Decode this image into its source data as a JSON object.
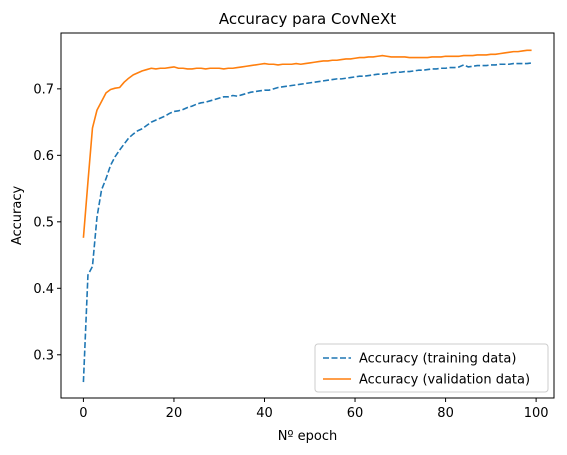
{
  "chart_data": {
    "type": "line",
    "title": "Accuracy para CovNeXt",
    "xlabel": "Nº epoch",
    "ylabel": "Accuracy",
    "xlim": [
      -4.95,
      103.95
    ],
    "ylim": [
      0.235,
      0.784
    ],
    "xticks": [
      0,
      20,
      40,
      60,
      80,
      100
    ],
    "yticks": [
      0.3,
      0.4,
      0.5,
      0.6,
      0.7
    ],
    "grid": false,
    "legend_position": "lower-right",
    "series": [
      {
        "name": "Accuracy (training data)",
        "color": "#1f77b4",
        "style": "dashed",
        "x": [
          0,
          1,
          2,
          3,
          4,
          5,
          6,
          7,
          8,
          9,
          10,
          11,
          12,
          13,
          14,
          15,
          16,
          17,
          18,
          19,
          20,
          21,
          22,
          23,
          24,
          25,
          26,
          27,
          28,
          29,
          30,
          31,
          32,
          33,
          34,
          35,
          36,
          37,
          38,
          39,
          40,
          41,
          42,
          43,
          44,
          45,
          46,
          47,
          48,
          49,
          50,
          51,
          52,
          53,
          54,
          55,
          56,
          57,
          58,
          59,
          60,
          61,
          62,
          63,
          64,
          65,
          66,
          67,
          68,
          69,
          70,
          71,
          72,
          73,
          74,
          75,
          76,
          77,
          78,
          79,
          80,
          81,
          82,
          83,
          84,
          85,
          86,
          87,
          88,
          89,
          90,
          91,
          92,
          93,
          94,
          95,
          96,
          97,
          98,
          99
        ],
        "values": [
          0.259,
          0.42,
          0.433,
          0.507,
          0.548,
          0.565,
          0.585,
          0.598,
          0.608,
          0.617,
          0.626,
          0.632,
          0.637,
          0.64,
          0.645,
          0.65,
          0.653,
          0.656,
          0.659,
          0.663,
          0.666,
          0.667,
          0.669,
          0.672,
          0.674,
          0.677,
          0.679,
          0.68,
          0.682,
          0.684,
          0.686,
          0.688,
          0.688,
          0.69,
          0.689,
          0.691,
          0.693,
          0.695,
          0.696,
          0.697,
          0.698,
          0.698,
          0.7,
          0.702,
          0.703,
          0.704,
          0.705,
          0.706,
          0.707,
          0.708,
          0.709,
          0.71,
          0.711,
          0.712,
          0.713,
          0.714,
          0.715,
          0.715,
          0.716,
          0.717,
          0.718,
          0.719,
          0.719,
          0.72,
          0.721,
          0.722,
          0.722,
          0.723,
          0.724,
          0.725,
          0.725,
          0.726,
          0.726,
          0.727,
          0.728,
          0.728,
          0.729,
          0.73,
          0.73,
          0.731,
          0.731,
          0.732,
          0.732,
          0.733,
          0.736,
          0.733,
          0.734,
          0.735,
          0.735,
          0.735,
          0.736,
          0.736,
          0.737,
          0.737,
          0.737,
          0.738,
          0.738,
          0.738,
          0.738,
          0.739
        ]
      },
      {
        "name": "Accuracy (validation data)",
        "color": "#ff7f0e",
        "style": "solid",
        "x": [
          0,
          1,
          2,
          3,
          4,
          5,
          6,
          7,
          8,
          9,
          10,
          11,
          12,
          13,
          14,
          15,
          16,
          17,
          18,
          19,
          20,
          21,
          22,
          23,
          24,
          25,
          26,
          27,
          28,
          29,
          30,
          31,
          32,
          33,
          34,
          35,
          36,
          37,
          38,
          39,
          40,
          41,
          42,
          43,
          44,
          45,
          46,
          47,
          48,
          49,
          50,
          51,
          52,
          53,
          54,
          55,
          56,
          57,
          58,
          59,
          60,
          61,
          62,
          63,
          64,
          65,
          66,
          67,
          68,
          69,
          70,
          71,
          72,
          73,
          74,
          75,
          76,
          77,
          78,
          79,
          80,
          81,
          82,
          83,
          84,
          85,
          86,
          87,
          88,
          89,
          90,
          91,
          92,
          93,
          94,
          95,
          96,
          97,
          98,
          99
        ],
        "values": [
          0.476,
          0.56,
          0.641,
          0.668,
          0.681,
          0.694,
          0.699,
          0.701,
          0.702,
          0.71,
          0.716,
          0.721,
          0.724,
          0.727,
          0.729,
          0.731,
          0.73,
          0.731,
          0.731,
          0.732,
          0.733,
          0.731,
          0.731,
          0.73,
          0.73,
          0.731,
          0.731,
          0.73,
          0.731,
          0.731,
          0.731,
          0.73,
          0.731,
          0.731,
          0.732,
          0.733,
          0.734,
          0.735,
          0.736,
          0.737,
          0.738,
          0.737,
          0.737,
          0.736,
          0.737,
          0.737,
          0.737,
          0.738,
          0.737,
          0.738,
          0.739,
          0.74,
          0.741,
          0.742,
          0.742,
          0.743,
          0.743,
          0.744,
          0.745,
          0.745,
          0.746,
          0.747,
          0.747,
          0.748,
          0.748,
          0.749,
          0.75,
          0.749,
          0.748,
          0.748,
          0.748,
          0.748,
          0.747,
          0.747,
          0.747,
          0.747,
          0.747,
          0.748,
          0.748,
          0.748,
          0.749,
          0.749,
          0.749,
          0.749,
          0.75,
          0.75,
          0.75,
          0.751,
          0.751,
          0.751,
          0.752,
          0.752,
          0.753,
          0.754,
          0.755,
          0.756,
          0.756,
          0.757,
          0.758,
          0.758
        ]
      }
    ]
  }
}
